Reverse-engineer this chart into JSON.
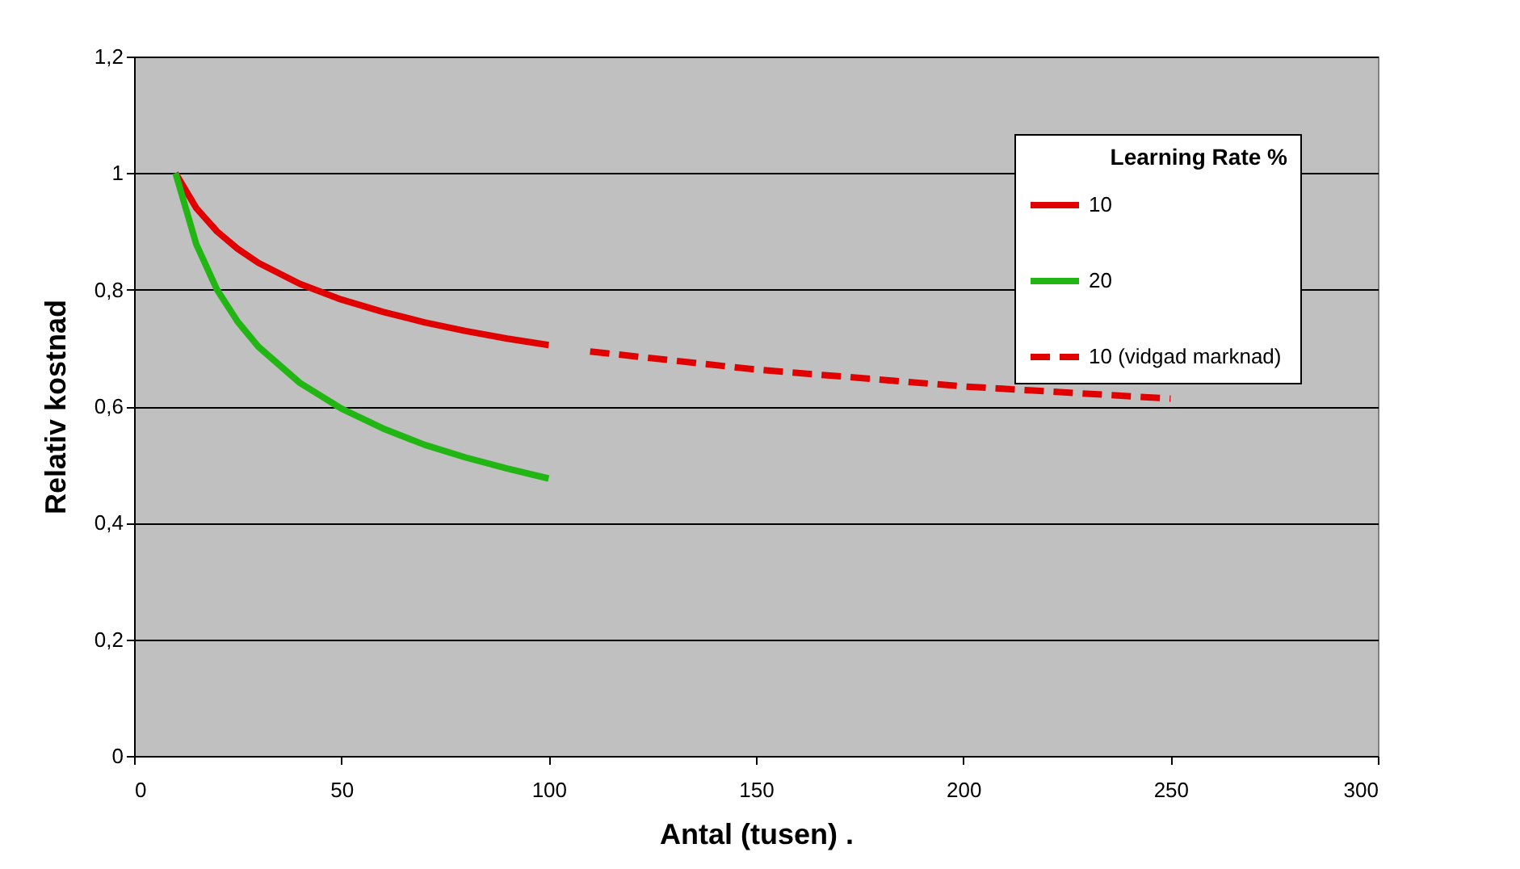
{
  "chart_data": {
    "type": "line",
    "xlabel": "Antal (tusen)        .",
    "ylabel": "Relativ kostnad",
    "legend_title": "Learning Rate %",
    "series": [
      {
        "name": "10",
        "color": "#e00000",
        "line_style": "solid",
        "x": [
          10,
          15,
          20,
          25,
          30,
          40,
          50,
          60,
          70,
          80,
          90,
          100
        ],
        "values": [
          1,
          0.94,
          0.9,
          0.87,
          0.846,
          0.81,
          0.783,
          0.762,
          0.744,
          0.729,
          0.716,
          0.705
        ]
      },
      {
        "name": "20",
        "color": "#22b614",
        "line_style": "solid",
        "x": [
          10,
          15,
          20,
          25,
          30,
          40,
          50,
          60,
          70,
          80,
          90,
          100
        ],
        "values": [
          1,
          0.878,
          0.8,
          0.745,
          0.702,
          0.64,
          0.596,
          0.562,
          0.534,
          0.512,
          0.493,
          0.476
        ]
      },
      {
        "name": "10  (vidgad marknad)",
        "color": "#e00000",
        "line_style": "dashed",
        "x": [
          110,
          150,
          200,
          250
        ],
        "values": [
          0.694,
          0.663,
          0.634,
          0.613
        ]
      }
    ],
    "xlim": [
      0,
      300
    ],
    "xticks": [
      0,
      50,
      100,
      150,
      200,
      250,
      300
    ],
    "ylim": [
      0,
      1.2
    ],
    "yticks": [
      0,
      {
        "value": 0.2,
        "label": "0,2"
      },
      {
        "value": 0.4,
        "label": "0,4"
      },
      {
        "value": 0.6,
        "label": "0,6"
      },
      {
        "value": 0.8,
        "label": "0,8"
      },
      1,
      {
        "value": 1.2,
        "label": "1,2"
      }
    ],
    "grid": "y",
    "legend": "top right",
    "marker": "none"
  }
}
